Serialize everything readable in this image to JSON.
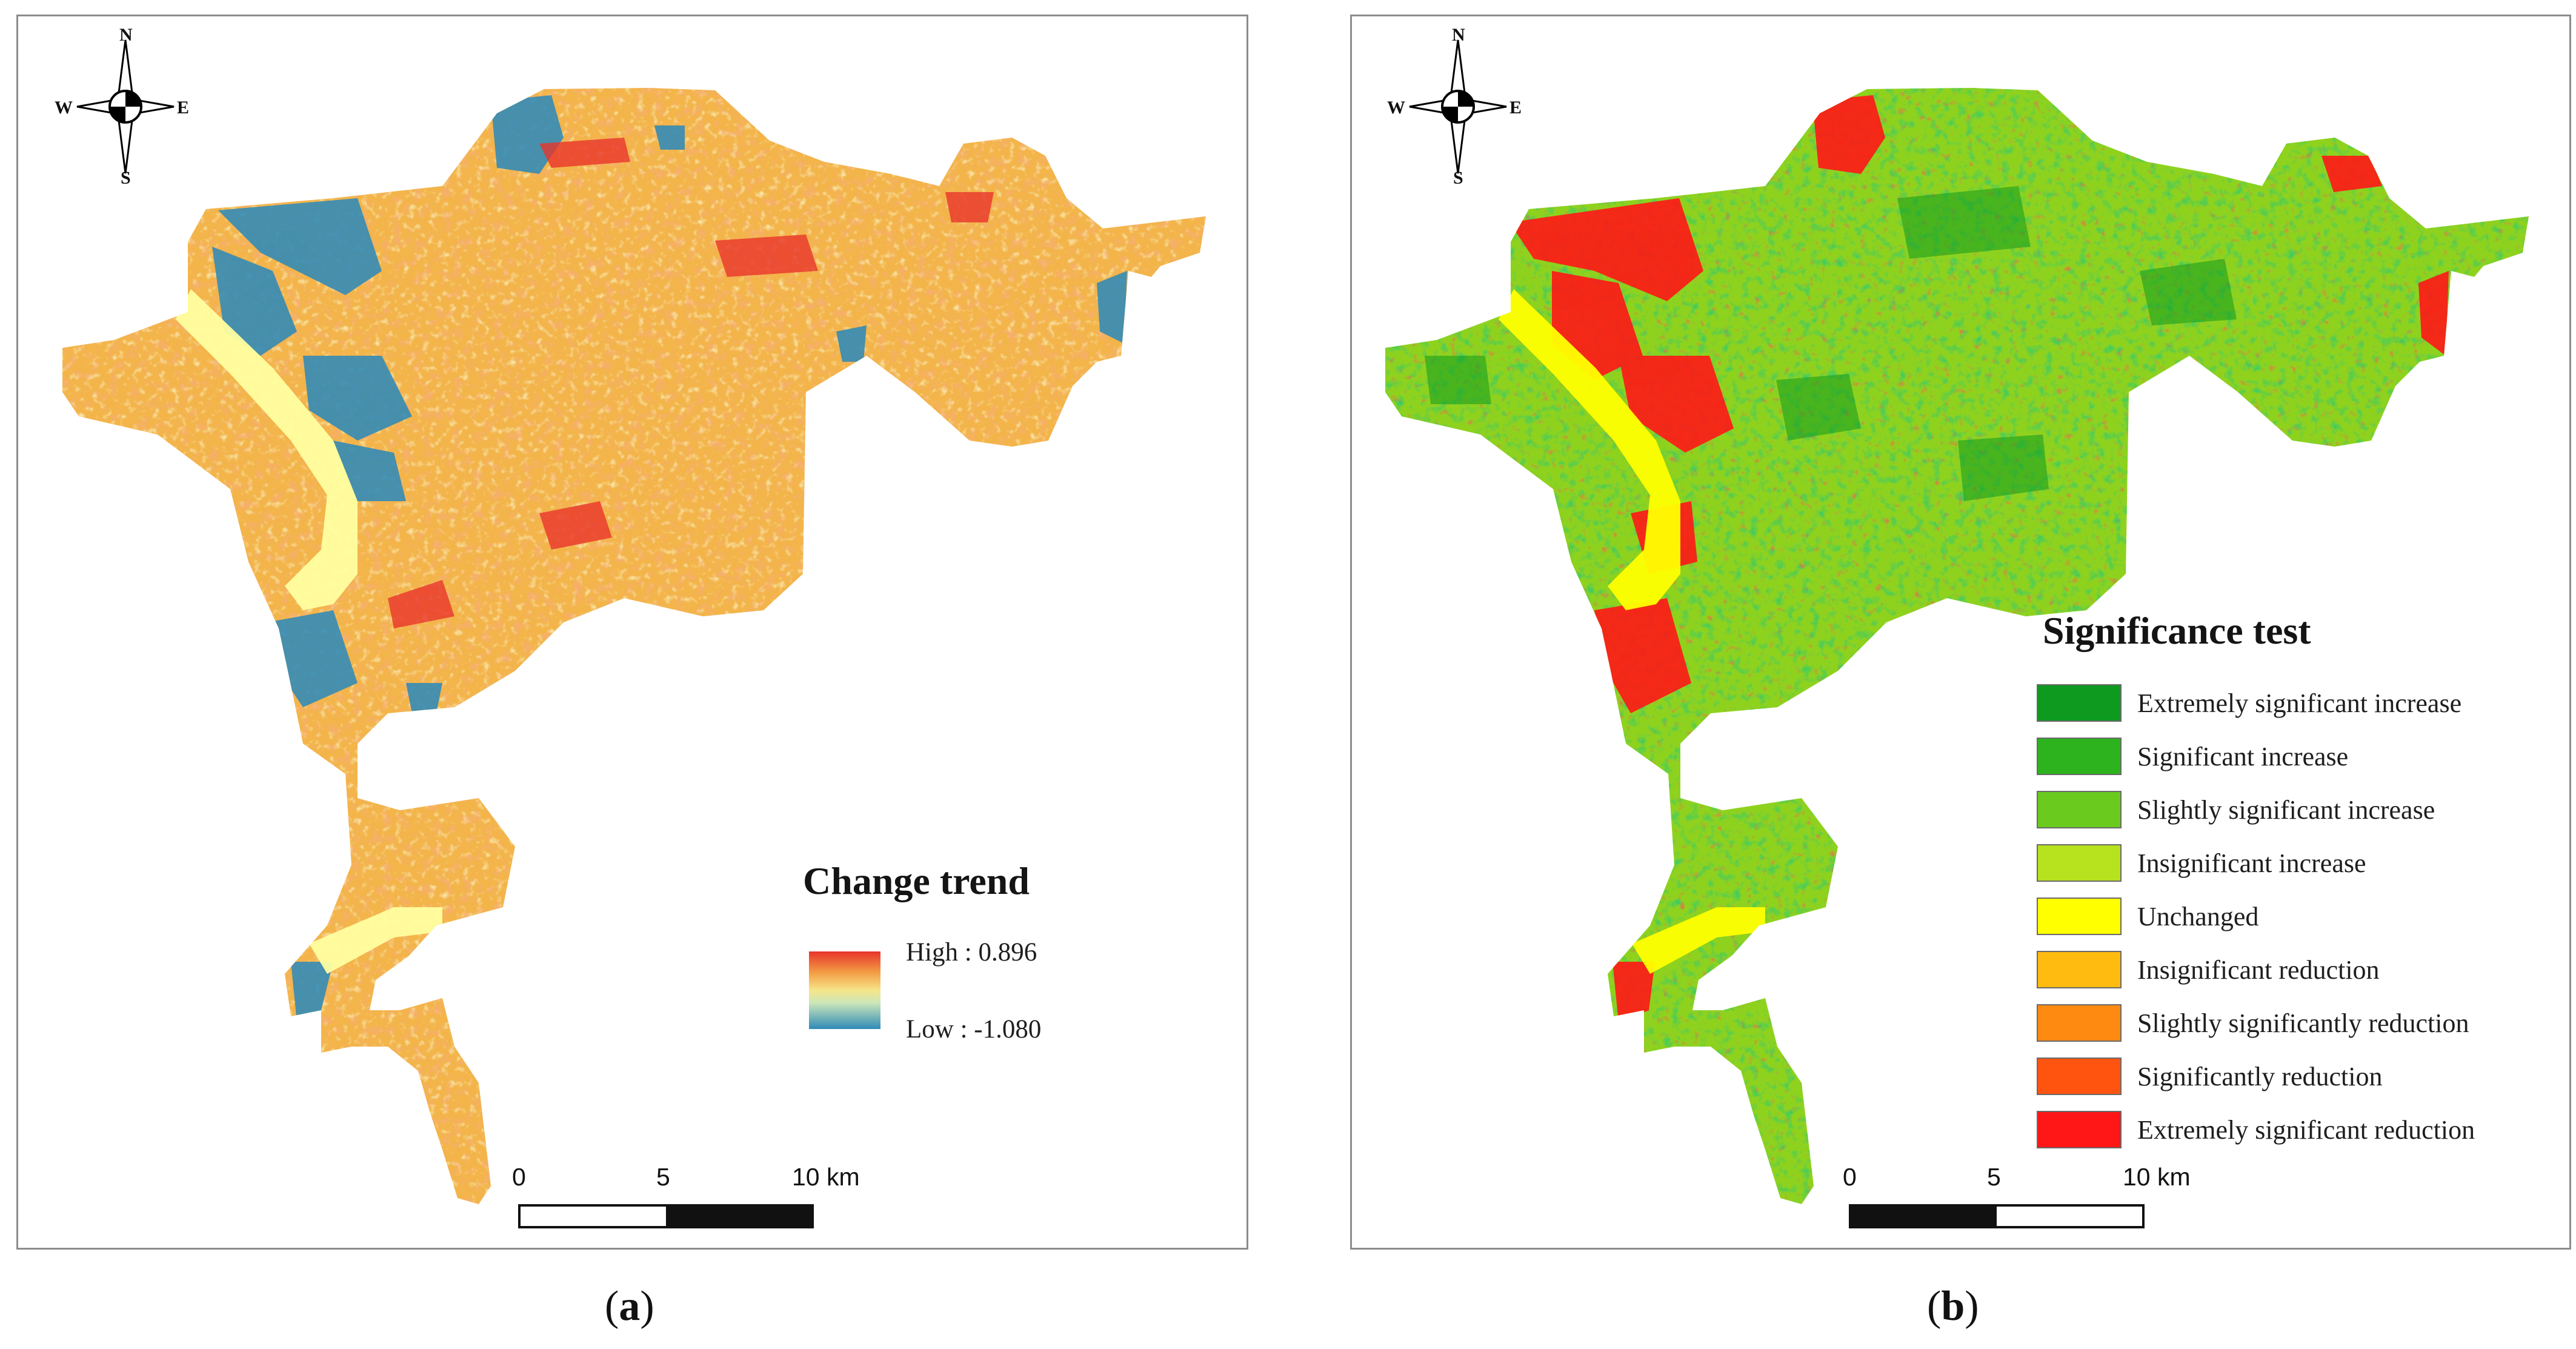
{
  "compass": {
    "n": "N",
    "s": "S",
    "e": "E",
    "w": "W"
  },
  "panel_a": {
    "legend_title": "Change trend",
    "high_label": "High : 0.896",
    "low_label": "Low : -1.080",
    "colors": {
      "high": "#e8352a",
      "mid": "#f6e58a",
      "low": "#2f8ab8",
      "base": "#f3b44a"
    },
    "caption_open": "(",
    "caption_letter": "a",
    "caption_close": ")"
  },
  "panel_b": {
    "legend_title": "Significance test",
    "legend": [
      {
        "label": "Extremely significant increase",
        "color": "#0e9a1f"
      },
      {
        "label": "Significant increase",
        "color": "#2db31e"
      },
      {
        "label": "Slightly significant increase",
        "color": "#6acb1e"
      },
      {
        "label": "Insignificant increase",
        "color": "#b6e21e"
      },
      {
        "label": "Unchanged",
        "color": "#ffff00"
      },
      {
        "label": "Insignificant reduction",
        "color": "#ffbb10"
      },
      {
        "label": "Slightly significantly reduction",
        "color": "#ff8a12"
      },
      {
        "label": "Significantly reduction",
        "color": "#ff5410"
      },
      {
        "label": "Extremely significant reduction",
        "color": "#ff1616"
      }
    ],
    "caption_open": "(",
    "caption_letter": "b",
    "caption_close": ")"
  },
  "scale": {
    "t0": "0",
    "t5": "5",
    "t10": "10 km"
  }
}
